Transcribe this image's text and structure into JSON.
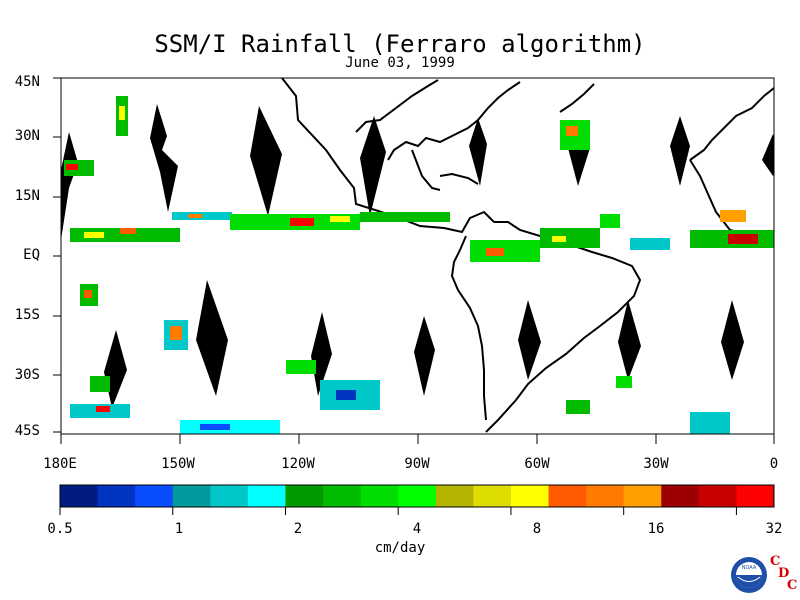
{
  "title": "SSM/I Rainfall (Ferraro algorithm)",
  "subtitle": "June 03, 1999",
  "lat_labels": [
    "45N",
    "30N",
    "15N",
    "EQ",
    "15S",
    "30S",
    "45S"
  ],
  "lon_labels": [
    "180E",
    "150W",
    "120W",
    "90W",
    "60W",
    "30W",
    "0"
  ],
  "colorbar": {
    "colors": [
      "#001c80",
      "#0035c2",
      "#0a4dff",
      "#00999c",
      "#00c8c8",
      "#00ffff",
      "#009900",
      "#00bb00",
      "#00dd00",
      "#00ff00",
      "#b3b300",
      "#dddd00",
      "#ffff00",
      "#ff5a00",
      "#ff7a00",
      "#ffa000",
      "#9c0000",
      "#c80000",
      "#ff0000"
    ],
    "labels": [
      "0.5",
      "1",
      "2",
      "4",
      "8",
      "16",
      "32"
    ],
    "units": "cm/day"
  },
  "logo": {
    "noaa_text": "NOAA",
    "cdc_letters": [
      "C",
      "D",
      "C"
    ]
  }
}
